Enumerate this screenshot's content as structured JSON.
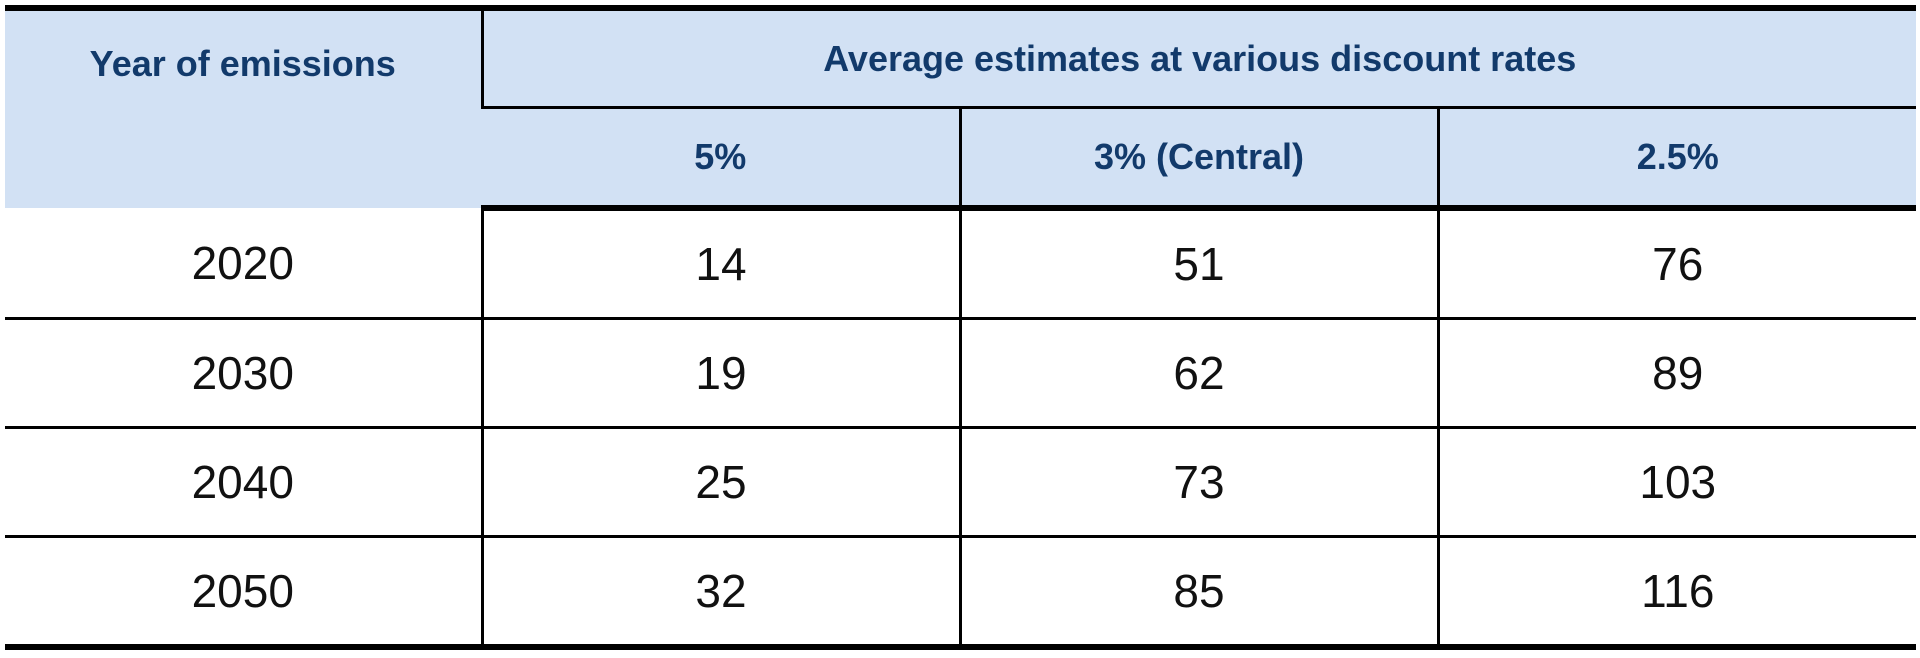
{
  "table": {
    "header": {
      "year_label": "Year of emissions",
      "group_label": "Average estimates at various discount rates",
      "rates": [
        "5%",
        "3% (Central)",
        "2.5%"
      ]
    },
    "rows": [
      {
        "year": "2020",
        "values": [
          "14",
          "51",
          "76"
        ]
      },
      {
        "year": "2030",
        "values": [
          "19",
          "62",
          "89"
        ]
      },
      {
        "year": "2040",
        "values": [
          "25",
          "73",
          "103"
        ]
      },
      {
        "year": "2050",
        "values": [
          "32",
          "85",
          "116"
        ]
      }
    ]
  },
  "colors": {
    "header_bg": "#d2e1f4",
    "header_text": "#123a6b",
    "body_text": "#111111",
    "rule": "#000000"
  }
}
